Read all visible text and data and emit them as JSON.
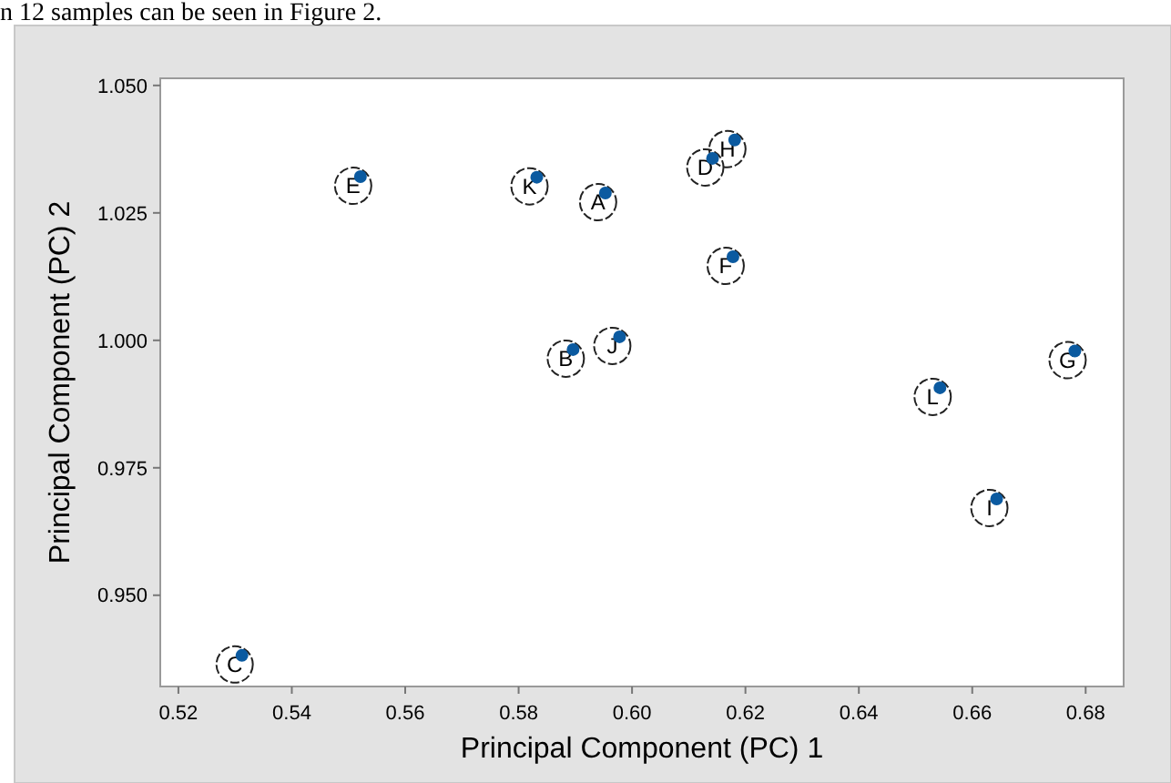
{
  "chart_data": {
    "type": "scatter",
    "xlabel": "Principal Component (PC) 1",
    "ylabel": "Principal Component (PC) 2",
    "annotations": [
      "n 12 samples can be seen in Figure 2.",
      {
        "text": "A",
        "x": 0.5953,
        "y": 1.0289
      },
      {
        "text": "B",
        "x": 0.5896,
        "y": 0.9982
      },
      {
        "text": "C",
        "x": 0.5312,
        "y": 0.9382
      },
      {
        "text": "D",
        "x": 0.6142,
        "y": 1.0357
      },
      {
        "text": "E",
        "x": 0.5521,
        "y": 1.0321
      },
      {
        "text": "F",
        "x": 0.6178,
        "y": 1.0164
      },
      {
        "text": "G",
        "x": 0.6781,
        "y": 0.9979
      },
      {
        "text": "H",
        "x": 0.6181,
        "y": 1.0393
      },
      {
        "text": "I",
        "x": 0.6643,
        "y": 0.9689
      },
      {
        "text": "J",
        "x": 0.5978,
        "y": 1.0007
      },
      {
        "text": "K",
        "x": 0.5832,
        "y": 1.032
      },
      {
        "text": "L",
        "x": 0.6543,
        "y": 0.9907
      }
    ],
    "series": [
      {
        "color": "#0b5aa0",
        "x": [
          0.5953,
          0.5896,
          0.5312,
          0.6142,
          0.5521,
          0.6178,
          0.6781,
          0.6181,
          0.6643,
          0.5978,
          0.5832,
          0.6543
        ],
        "values": [
          1.0289,
          0.9982,
          0.9382,
          1.0357,
          1.0321,
          1.0164,
          0.9979,
          1.0393,
          0.9689,
          1.0007,
          1.032,
          0.9907
        ]
      }
    ],
    "xlim": [
      0.5168,
      0.6867
    ],
    "ylim": [
      0.9321,
      1.0514
    ],
    "xticks": [
      {
        "value": 0.52,
        "label": "0.52"
      },
      {
        "value": 0.54,
        "label": "0.54"
      },
      {
        "value": 0.56,
        "label": "0.56"
      },
      {
        "value": 0.58,
        "label": "0.58"
      },
      {
        "value": 0.6,
        "label": "0.60"
      },
      {
        "value": 0.62,
        "label": "0.62"
      },
      {
        "value": 0.64,
        "label": "0.64"
      },
      {
        "value": 0.66,
        "label": "0.66"
      },
      {
        "value": 0.68,
        "label": "0.68"
      }
    ],
    "yticks": [
      {
        "value": 0.95,
        "label": "0.950"
      },
      {
        "value": 0.975,
        "label": "0.975"
      },
      {
        "value": 1,
        "label": "1.000"
      },
      {
        "value": 1.025,
        "label": "1.025"
      },
      {
        "value": 1.05,
        "label": "1.050"
      }
    ],
    "grid": false,
    "marker": "circle"
  }
}
